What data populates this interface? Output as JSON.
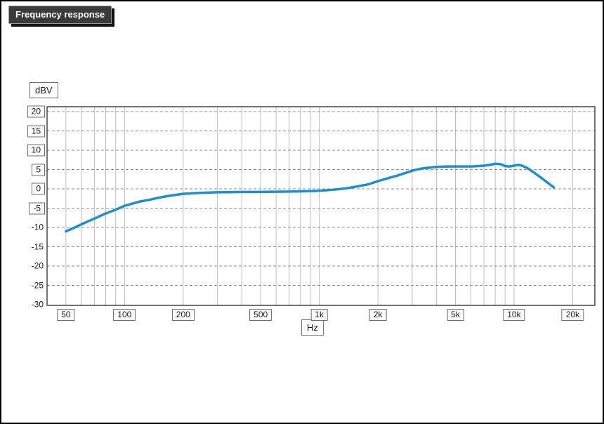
{
  "window": {
    "title": "Frequency response"
  },
  "chart_data": {
    "type": "line",
    "title": "Frequency response",
    "xlabel": "Hz",
    "ylabel": "dBV",
    "x_scale": "log",
    "x_domain": [
      40,
      26000
    ],
    "y_domain": [
      -30,
      20
    ],
    "grid": true,
    "legend": "none",
    "line_color": "#1e8fcf",
    "y_ticks": [
      {
        "label": "20",
        "value": 20,
        "boxed": true
      },
      {
        "label": "15",
        "value": 15,
        "boxed": true
      },
      {
        "label": "10",
        "value": 10,
        "boxed": true
      },
      {
        "label": "5",
        "value": 5,
        "boxed": true
      },
      {
        "label": "0",
        "value": 0,
        "boxed": true
      },
      {
        "label": "-5",
        "value": -5,
        "boxed": true
      },
      {
        "label": "-10",
        "value": -10,
        "boxed": false
      },
      {
        "label": "-15",
        "value": -15,
        "boxed": false
      },
      {
        "label": "-20",
        "value": -20,
        "boxed": false
      },
      {
        "label": "-25",
        "value": -25,
        "boxed": false
      },
      {
        "label": "-30",
        "value": -30,
        "boxed": false
      }
    ],
    "x_ticks": [
      {
        "label": "50",
        "value": 50
      },
      {
        "label": "100",
        "value": 100
      },
      {
        "label": "200",
        "value": 200
      },
      {
        "label": "500",
        "value": 500
      },
      {
        "label": "1k",
        "value": 1000
      },
      {
        "label": "2k",
        "value": 2000
      },
      {
        "label": "5k",
        "value": 5000
      },
      {
        "label": "10k",
        "value": 10000
      },
      {
        "label": "20k",
        "value": 20000
      }
    ],
    "x_gridlines": [
      50,
      60,
      70,
      80,
      90,
      100,
      200,
      300,
      400,
      500,
      600,
      700,
      800,
      900,
      1000,
      2000,
      3000,
      4000,
      5000,
      6000,
      7000,
      8000,
      9000,
      10000,
      20000
    ],
    "y_gridlines": [
      20,
      15,
      10,
      5,
      0,
      -5,
      -10,
      -15,
      -20,
      -25
    ],
    "series": [
      {
        "name": "Frequency response",
        "points": [
          [
            50,
            -11
          ],
          [
            55,
            -10.1
          ],
          [
            60,
            -9.2
          ],
          [
            65,
            -8.4
          ],
          [
            70,
            -7.7
          ],
          [
            75,
            -7.0
          ],
          [
            80,
            -6.4
          ],
          [
            85,
            -5.9
          ],
          [
            90,
            -5.4
          ],
          [
            95,
            -4.9
          ],
          [
            100,
            -4.4
          ],
          [
            110,
            -3.8
          ],
          [
            120,
            -3.3
          ],
          [
            135,
            -2.8
          ],
          [
            150,
            -2.3
          ],
          [
            170,
            -1.8
          ],
          [
            200,
            -1.3
          ],
          [
            230,
            -1.1
          ],
          [
            260,
            -1.0
          ],
          [
            300,
            -0.9
          ],
          [
            350,
            -0.85
          ],
          [
            400,
            -0.8
          ],
          [
            450,
            -0.8
          ],
          [
            500,
            -0.8
          ],
          [
            600,
            -0.75
          ],
          [
            700,
            -0.7
          ],
          [
            800,
            -0.65
          ],
          [
            900,
            -0.6
          ],
          [
            1000,
            -0.5
          ],
          [
            1100,
            -0.35
          ],
          [
            1250,
            -0.1
          ],
          [
            1400,
            0.2
          ],
          [
            1600,
            0.7
          ],
          [
            1800,
            1.2
          ],
          [
            2000,
            2.0
          ],
          [
            2200,
            2.6
          ],
          [
            2500,
            3.4
          ],
          [
            2800,
            4.2
          ],
          [
            3100,
            4.9
          ],
          [
            3400,
            5.3
          ],
          [
            3700,
            5.5
          ],
          [
            4000,
            5.7
          ],
          [
            4500,
            5.8
          ],
          [
            5000,
            5.8
          ],
          [
            5500,
            5.8
          ],
          [
            6000,
            5.8
          ],
          [
            6500,
            5.9
          ],
          [
            7000,
            6.0
          ],
          [
            7500,
            6.2
          ],
          [
            8000,
            6.5
          ],
          [
            8500,
            6.4
          ],
          [
            9000,
            5.9
          ],
          [
            9500,
            5.8
          ],
          [
            10000,
            6.0
          ],
          [
            10500,
            6.2
          ],
          [
            11000,
            6.0
          ],
          [
            11700,
            5.4
          ],
          [
            12500,
            4.4
          ],
          [
            13500,
            3.2
          ],
          [
            14500,
            2.0
          ],
          [
            15300,
            1.1
          ],
          [
            15500,
            0.9
          ],
          [
            16000,
            0.4
          ]
        ]
      }
    ]
  }
}
